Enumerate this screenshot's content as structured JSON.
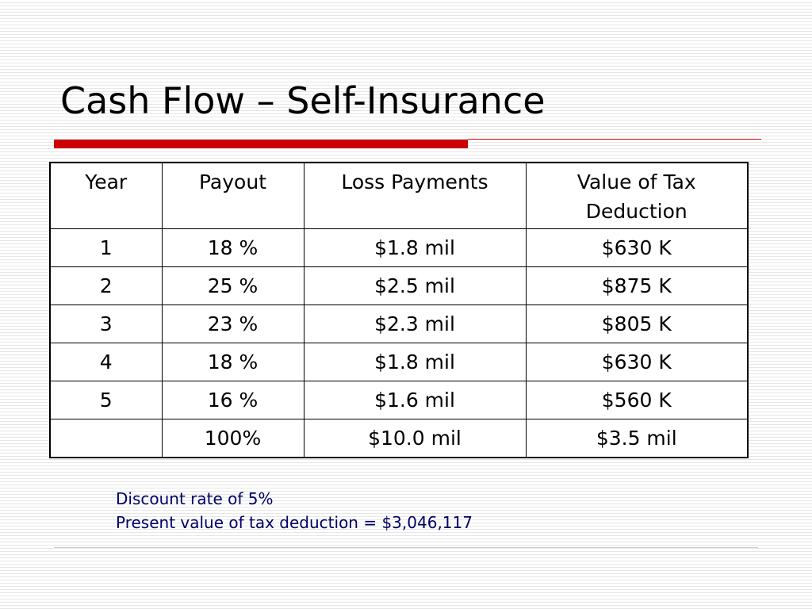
{
  "title": "Cash Flow – Self-Insurance",
  "colors": {
    "accent_red": "#cc0000",
    "notes_text": "#000066"
  },
  "table": {
    "headers": [
      "Year",
      "Payout",
      "Loss Payments",
      "Value of Tax Deduction"
    ],
    "rows": [
      [
        "1",
        "18 %",
        "$1.8 mil",
        "$630 K"
      ],
      [
        "2",
        "25 %",
        "$2.5 mil",
        "$875 K"
      ],
      [
        "3",
        "23 %",
        "$2.3 mil",
        "$805 K"
      ],
      [
        "4",
        "18 %",
        "$1.8 mil",
        "$630 K"
      ],
      [
        "5",
        "16 %",
        "$1.6 mil",
        "$560 K"
      ],
      [
        "",
        "100%",
        "$10.0 mil",
        "$3.5 mil"
      ]
    ]
  },
  "notes": {
    "line1": "Discount rate of 5%",
    "line2": "Present value of tax deduction = $3,046,117"
  }
}
